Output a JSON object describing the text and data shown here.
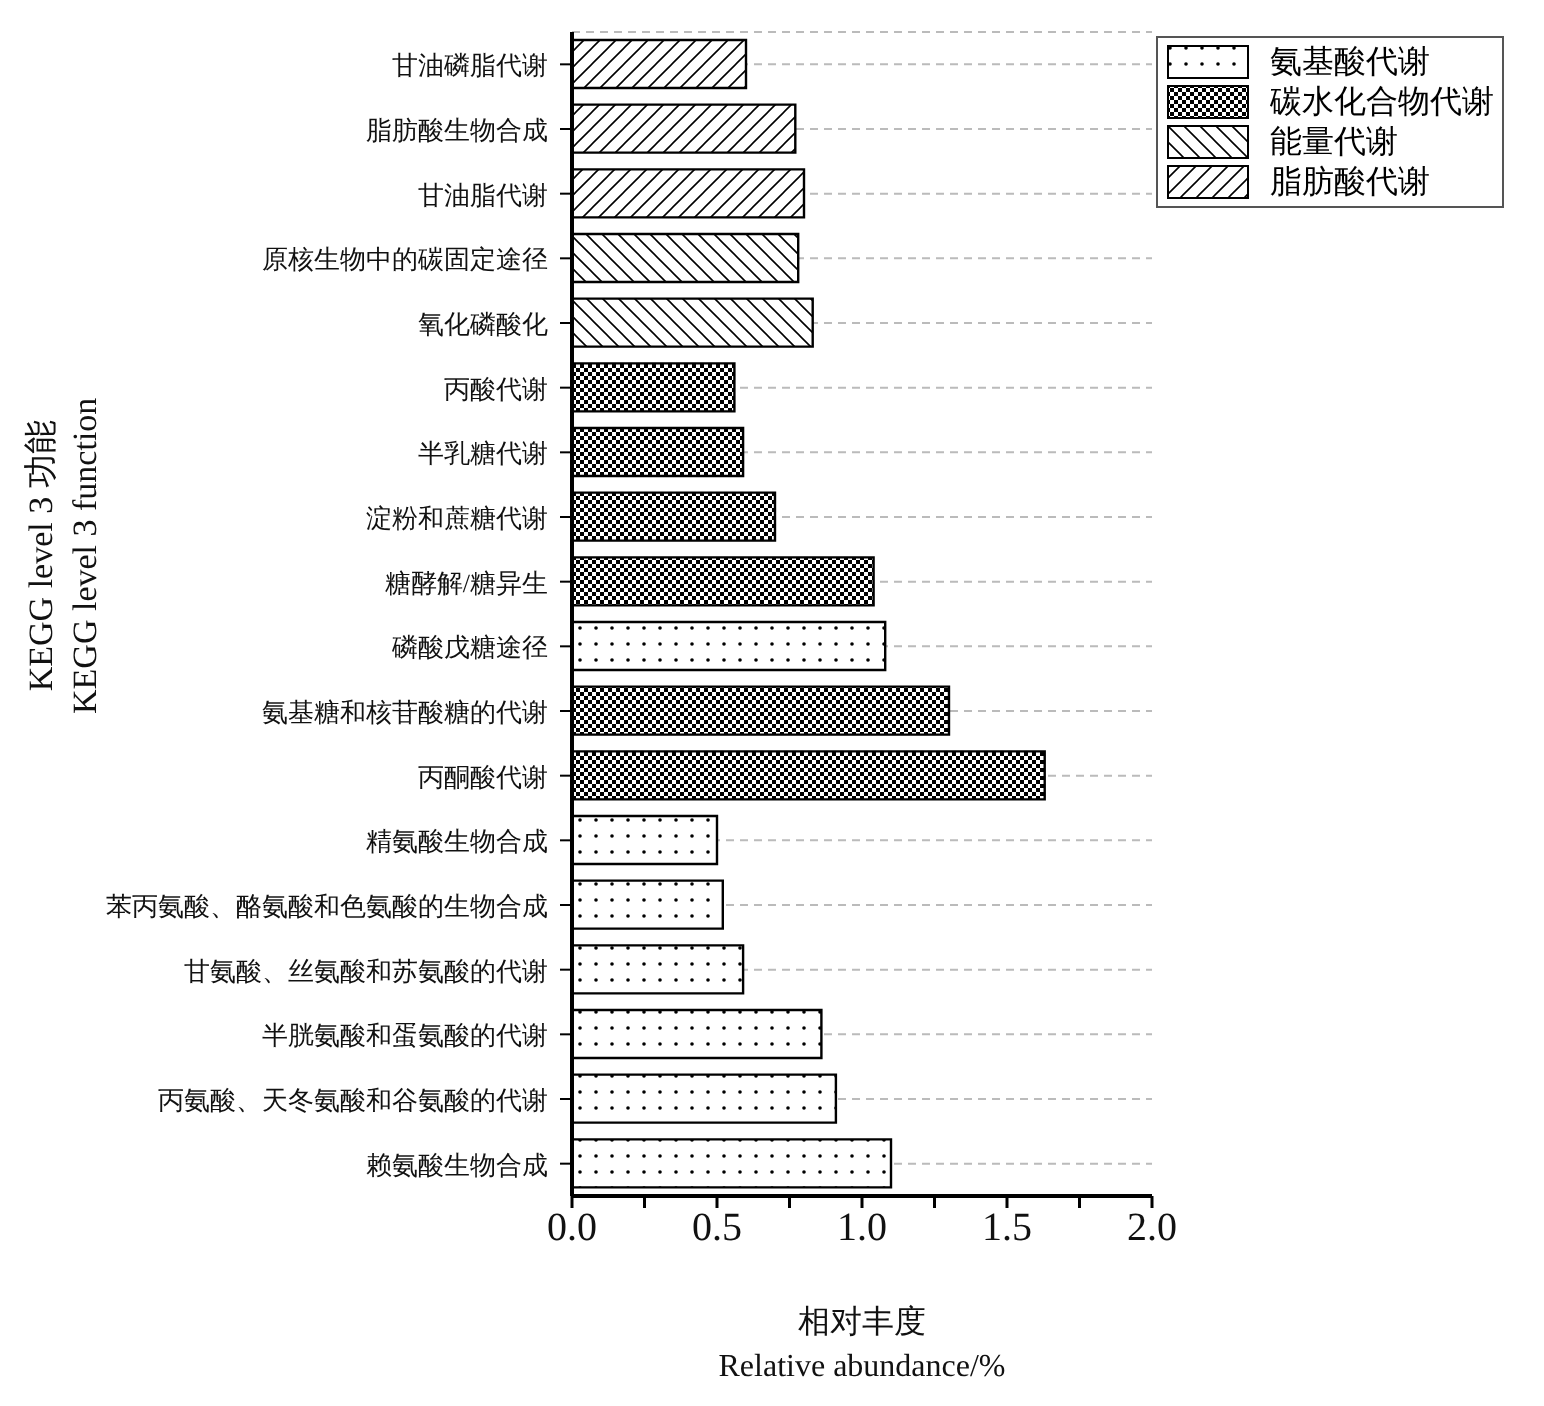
{
  "chart_data": {
    "type": "bar",
    "orientation": "horizontal",
    "xlabel": "相对丰度\nRelative abundance/%",
    "ylabel": "KEGG level 3 功能\nKEGG level 3 function",
    "categories": [
      "甘油磷脂代谢",
      "脂肪酸生物合成",
      "甘油脂代谢",
      "原核生物中的碳固定途径",
      "氧化磷酸化",
      "丙酸代谢",
      "半乳糖代谢",
      "淀粉和蔗糖代谢",
      "糖酵解/糖异生",
      "磷酸戊糖途径",
      "氨基糖和核苷酸糖的代谢",
      "丙酮酸代谢",
      "精氨酸生物合成",
      "苯丙氨酸、酪氨酸和色氨酸的生物合成",
      "甘氨酸、丝氨酸和苏氨酸的代谢",
      "半胱氨酸和蛋氨酸的代谢",
      "丙氨酸、天冬氨酸和谷氨酸的代谢",
      "赖氨酸生物合成"
    ],
    "series": [
      {
        "name": "氨基酸代谢",
        "color": "#000000",
        "values": [
          null,
          null,
          null,
          null,
          null,
          null,
          null,
          null,
          null,
          1.08,
          null,
          null,
          0.5,
          0.52,
          0.59,
          0.86,
          0.91,
          1.1
        ]
      },
      {
        "name": "碳水化合物代谢",
        "color": "#000000",
        "values": [
          null,
          null,
          null,
          null,
          null,
          0.56,
          0.59,
          0.7,
          1.04,
          null,
          1.3,
          1.63,
          null,
          null,
          null,
          null,
          null,
          null
        ]
      },
      {
        "name": "能量代谢",
        "color": "#000000",
        "values": [
          null,
          null,
          null,
          0.78,
          0.83,
          null,
          null,
          null,
          null,
          null,
          null,
          null,
          null,
          null,
          null,
          null,
          null,
          null
        ]
      },
      {
        "name": "脂肪酸代谢",
        "color": "#000000",
        "values": [
          0.6,
          0.77,
          0.8,
          null,
          null,
          null,
          null,
          null,
          null,
          null,
          null,
          null,
          null,
          null,
          null,
          null,
          null,
          null
        ]
      }
    ],
    "xlim": [
      0,
      2
    ],
    "xticks": [
      {
        "value": 0,
        "label": "0.0"
      },
      {
        "value": 0.25,
        "label": null
      },
      {
        "value": 0.5,
        "label": "0.5"
      },
      {
        "value": 0.75,
        "label": null
      },
      {
        "value": 1,
        "label": "1.0"
      },
      {
        "value": 1.25,
        "label": null
      },
      {
        "value": 1.5,
        "label": "1.5"
      },
      {
        "value": 1.75,
        "label": null
      },
      {
        "value": 2,
        "label": "2.0"
      }
    ],
    "grid": "y",
    "legend": "top right"
  }
}
